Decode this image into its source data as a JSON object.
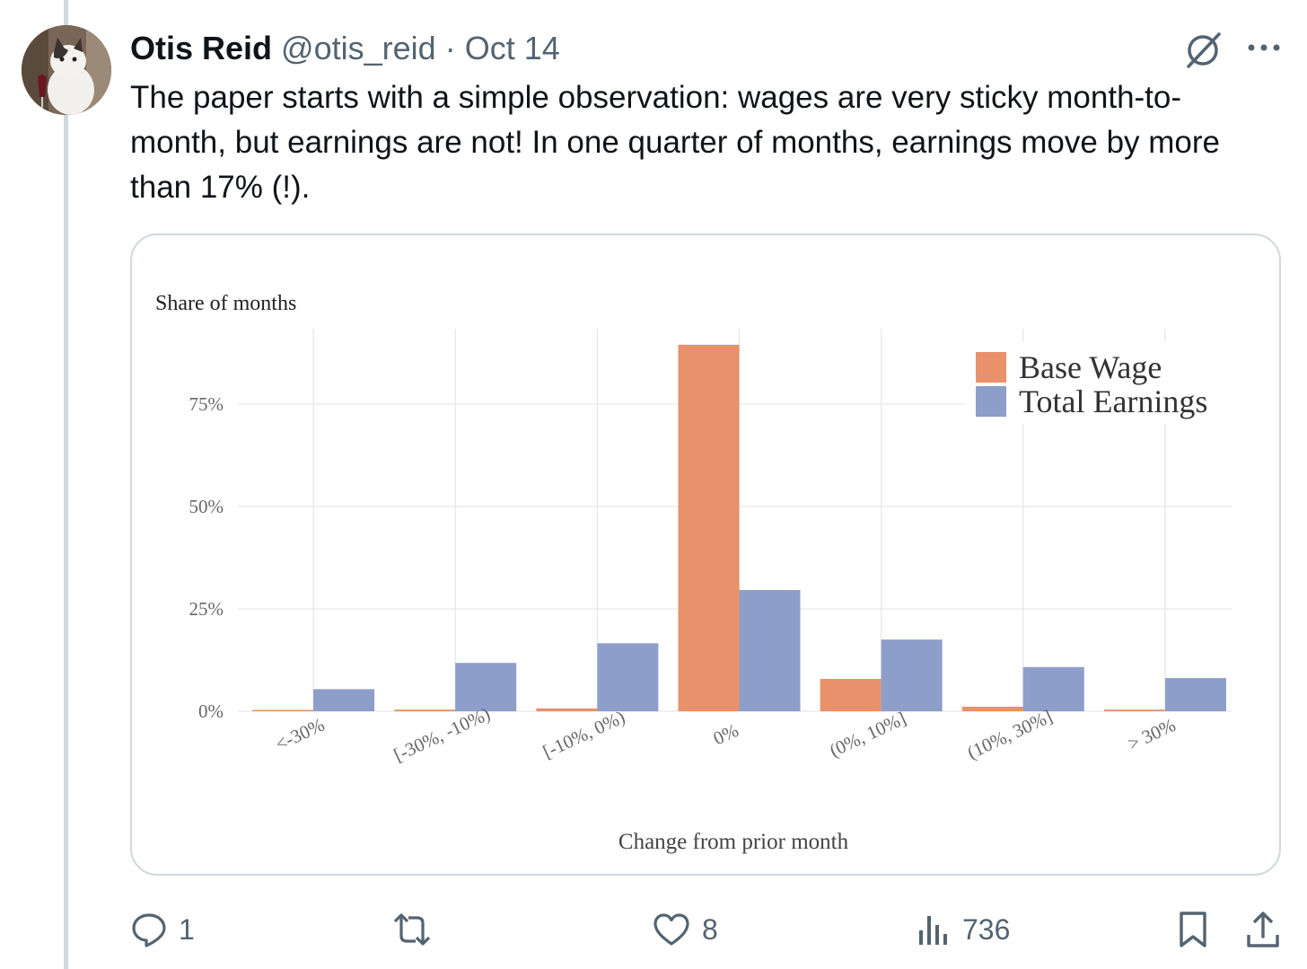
{
  "tweet": {
    "author_name": "Otis Reid",
    "handle": "@otis_reid",
    "separator": "·",
    "date": "Oct 14",
    "text": "The paper starts with a simple observation: wages are very sticky month-to-month, but earnings are not! In one quarter of months, earnings move by more than 17% (!)."
  },
  "icons": {
    "header": [
      "grok-icon",
      "more-icon"
    ],
    "actions": [
      "reply-icon",
      "retweet-icon",
      "like-icon",
      "views-icon",
      "bookmark-icon",
      "share-icon"
    ]
  },
  "actions": {
    "reply_count": "1",
    "retweet_count": "",
    "like_count": "8",
    "views_count": "736"
  },
  "colors": {
    "base_wage": "#e8916a",
    "total_earnings": "#8e9ecb",
    "muted_text": "#536471",
    "border": "#cfd9de"
  },
  "chart_data": {
    "type": "bar",
    "ylabel": "Share of months",
    "xlabel": "Change from prior month",
    "categories": [
      "<-30%",
      "[-30%, -10%)",
      "[-10%, 0%)",
      "0%",
      "(0%, 10%]",
      "(10%, 30%]",
      "> 30%"
    ],
    "y_ticks": [
      "0%",
      "25%",
      "50%",
      "75%"
    ],
    "ylim": [
      0,
      94
    ],
    "grid": true,
    "legend_position": "top-right",
    "series": [
      {
        "name": "Base Wage",
        "values": [
          0.2,
          0.4,
          0.7,
          89.5,
          7.9,
          1.1,
          0.4
        ]
      },
      {
        "name": "Total Earnings",
        "values": [
          5.4,
          11.8,
          16.6,
          29.6,
          17.5,
          10.8,
          8.1
        ]
      }
    ]
  }
}
